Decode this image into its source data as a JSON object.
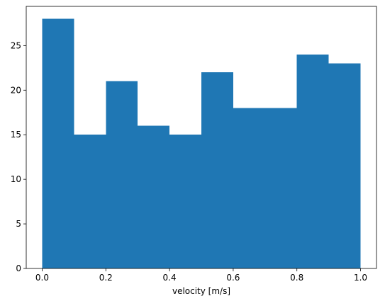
{
  "chart_data": {
    "type": "bar",
    "title": "",
    "xlabel": "velocity [m/s]",
    "ylabel": "",
    "bin_edges": [
      0.0,
      0.1,
      0.2,
      0.3,
      0.4,
      0.5,
      0.6,
      0.7,
      0.8,
      0.9,
      1.0
    ],
    "values": [
      28,
      15,
      21,
      16,
      15,
      22,
      18,
      18,
      24,
      23
    ],
    "xlim": [
      -0.05,
      1.05
    ],
    "ylim": [
      0,
      29.4
    ],
    "xticks": [
      0.0,
      0.2,
      0.4,
      0.6,
      0.8,
      1.0
    ],
    "xtick_labels": [
      "0.0",
      "0.2",
      "0.4",
      "0.6",
      "0.8",
      "1.0"
    ],
    "yticks": [
      0,
      5,
      10,
      15,
      20,
      25
    ],
    "ytick_labels": [
      "0",
      "5",
      "10",
      "15",
      "20",
      "25"
    ],
    "grid": false,
    "legend": "none",
    "bar_color": "#1f77b4"
  }
}
